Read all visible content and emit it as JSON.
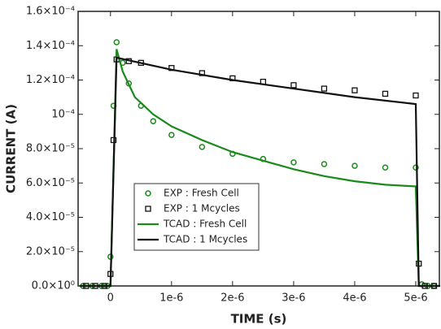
{
  "chart_data": {
    "type": "line",
    "x_label": "TIME (s)",
    "y_label": "CURRENT (A)",
    "xlim": [
      -5.3e-07,
      5.4e-06
    ],
    "ylim": [
      0,
      0.00016
    ],
    "xticks": [
      0,
      {
        "value": 1e-06,
        "label": "1e-6"
      },
      {
        "value": 2e-06,
        "label": "2e-6"
      },
      {
        "value": 3e-06,
        "label": "3e-6"
      },
      {
        "value": 4e-06,
        "label": "4e-6"
      },
      {
        "value": 5e-06,
        "label": "5e-6"
      }
    ],
    "yticks": [
      {
        "value": 0,
        "label": "0.0×10⁰"
      },
      {
        "value": 2e-05,
        "label": "2.0×10⁻⁵"
      },
      {
        "value": 4e-05,
        "label": "4.0×10⁻⁵"
      },
      {
        "value": 6e-05,
        "label": "6.0×10⁻⁵"
      },
      {
        "value": 8e-05,
        "label": "8.0×10⁻⁵"
      },
      {
        "value": 0.0001,
        "label": "10⁻⁴"
      },
      {
        "value": 0.00012,
        "label": "1.2×10⁻⁴"
      },
      {
        "value": 0.00014,
        "label": "1.4×10⁻⁴"
      },
      {
        "value": 0.00016,
        "label": "1.6×10⁻⁴"
      }
    ],
    "series": [
      {
        "name": "EXP : Fresh Cell",
        "color": "#1a8a1a",
        "mode": "markers",
        "marker": "circle",
        "x": [
          -4.5e-07,
          -3e-07,
          -1.5e-07,
          -5e-08,
          0,
          5e-08,
          1e-07,
          2e-07,
          3e-07,
          5e-07,
          7e-07,
          1e-06,
          1.5e-06,
          2e-06,
          2.5e-06,
          3e-06,
          3.5e-06,
          4e-06,
          4.5e-06,
          5e-06,
          5.1e-06,
          5.2e-06,
          5.3e-06
        ],
        "values": [
          0,
          0,
          0,
          0,
          1.7e-05,
          0.000105,
          0.000142,
          0.00013,
          0.000118,
          0.000105,
          9.6e-05,
          8.8e-05,
          8.1e-05,
          7.7e-05,
          7.4e-05,
          7.2e-05,
          7.1e-05,
          7e-05,
          6.9e-05,
          6.9e-05,
          1e-06,
          0,
          0
        ]
      },
      {
        "name": "EXP : 1 Mcycles",
        "color": "#111111",
        "mode": "markers",
        "marker": "square",
        "x": [
          -4e-07,
          -2.5e-07,
          -1e-07,
          0,
          5e-08,
          1e-07,
          3e-07,
          5e-07,
          1e-06,
          1.5e-06,
          2e-06,
          2.5e-06,
          3e-06,
          3.5e-06,
          4e-06,
          4.5e-06,
          5e-06,
          5.05e-06,
          5.15e-06,
          5.3e-06
        ],
        "values": [
          0,
          0,
          0,
          7e-06,
          8.5e-05,
          0.000132,
          0.000131,
          0.00013,
          0.000127,
          0.000124,
          0.000121,
          0.000119,
          0.000117,
          0.000115,
          0.000114,
          0.000112,
          0.000111,
          1.3e-05,
          0,
          0
        ]
      },
      {
        "name": "TCAD : Fresh Cell",
        "color": "#1a8a1a",
        "mode": "line",
        "x": [
          -5e-07,
          0,
          1e-07,
          2e-07,
          4e-07,
          7e-07,
          1e-06,
          1.5e-06,
          2e-06,
          2.5e-06,
          3e-06,
          3.5e-06,
          4e-06,
          4.5e-06,
          5e-06,
          5.05e-06,
          5.4e-06
        ],
        "values": [
          0,
          0,
          0.000138,
          0.000125,
          0.00011,
          0.0001,
          9.3e-05,
          8.5e-05,
          7.8e-05,
          7.3e-05,
          6.8e-05,
          6.4e-05,
          6.1e-05,
          5.9e-05,
          5.8e-05,
          0,
          0
        ]
      },
      {
        "name": "TCAD : 1 Mcycles",
        "color": "#111111",
        "mode": "line",
        "x": [
          -5e-07,
          0,
          1e-07,
          1e-06,
          2e-06,
          3e-06,
          4e-06,
          5e-06,
          5.05e-06,
          5.4e-06
        ],
        "values": [
          0,
          0,
          0.000133,
          0.000126,
          0.00012,
          0.000115,
          0.00011,
          0.000106,
          0,
          0
        ]
      }
    ]
  }
}
